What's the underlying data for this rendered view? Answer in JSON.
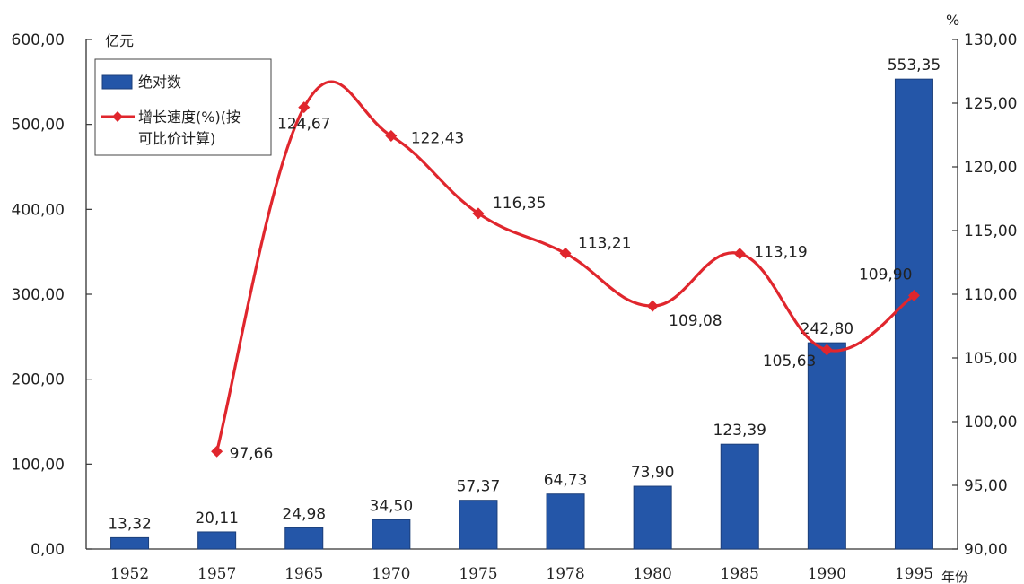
{
  "chart_data": {
    "type": "bar",
    "categories": [
      "1952",
      "1957",
      "1965",
      "1970",
      "1975",
      "1978",
      "1980",
      "1985",
      "1990",
      "1995"
    ],
    "series": [
      {
        "name": "绝对数",
        "chart": "bar",
        "axis": "left",
        "values": [
          13.32,
          20.11,
          24.98,
          34.5,
          57.37,
          64.73,
          73.9,
          123.39,
          242.8,
          553.35
        ],
        "labels": [
          "13,32",
          "20,11",
          "24,98",
          "34,50",
          "57,37",
          "64,73",
          "73,90",
          "123,39",
          "242,80",
          "553,35"
        ],
        "color": "#2456a8"
      },
      {
        "name": "增长速度(%)(按可比价计算)",
        "chart": "line",
        "axis": "right",
        "values": [
          null,
          97.66,
          124.67,
          122.43,
          116.35,
          113.21,
          109.08,
          113.19,
          105.63,
          109.9
        ],
        "labels": [
          null,
          "97,66",
          "124,67",
          "122,43",
          "116,35",
          "113,21",
          "109,08",
          "113,19",
          "105,63",
          "109,90"
        ],
        "color": "#e0262d"
      }
    ],
    "legend": {
      "placement": "top-left",
      "entries": [
        "绝对数",
        "增长速度(%)(按",
        "可比价计算)"
      ]
    },
    "y_left": {
      "unit": "亿元",
      "ylim": [
        0,
        600
      ],
      "ticks": [
        "0,00",
        "100,00",
        "200,00",
        "300,00",
        "400,00",
        "500,00",
        "600,00"
      ]
    },
    "y_right": {
      "unit": "%",
      "ylim": [
        90,
        130
      ],
      "ticks": [
        "90,00",
        "95,00",
        "100,00",
        "105,00",
        "110,00",
        "115,00",
        "120,00",
        "125,00",
        "130,00"
      ]
    },
    "xlabel": "年份",
    "grid": false
  }
}
